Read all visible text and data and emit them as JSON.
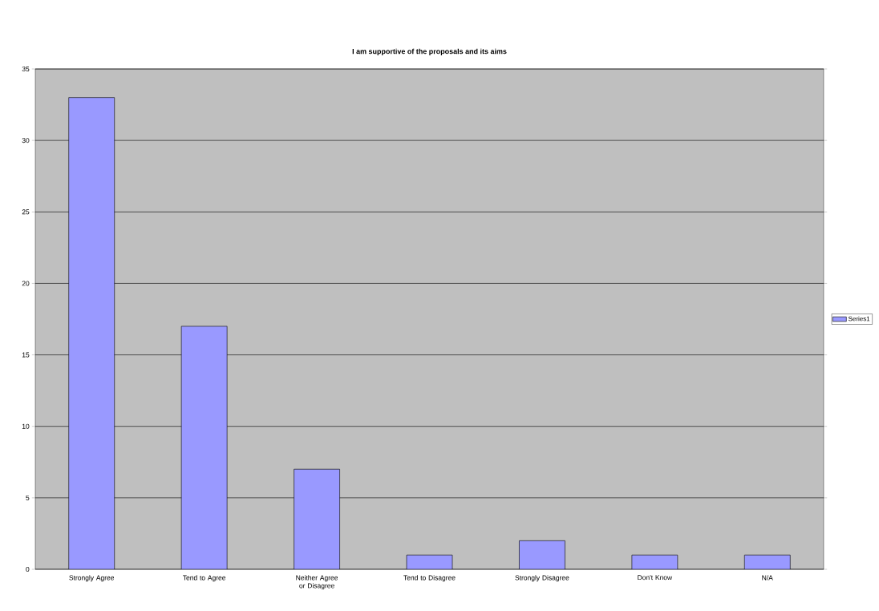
{
  "chart_data": {
    "type": "bar",
    "title": "I am supportive of the proposals and its aims",
    "categories": [
      "Strongly Agree",
      "Tend to Agree",
      "Neither Agree or Disagree",
      "Tend to Disagree",
      "Strongly Disagree",
      "Don't Know",
      "N/A"
    ],
    "series": [
      {
        "name": "Series1",
        "color": "#9999ff",
        "values": [
          33,
          17,
          7,
          1,
          2,
          1,
          1
        ]
      }
    ],
    "ylim": [
      0,
      35
    ],
    "yticks": [
      0,
      5,
      10,
      15,
      20,
      25,
      30,
      35
    ],
    "grid": "y",
    "legend": "right"
  }
}
